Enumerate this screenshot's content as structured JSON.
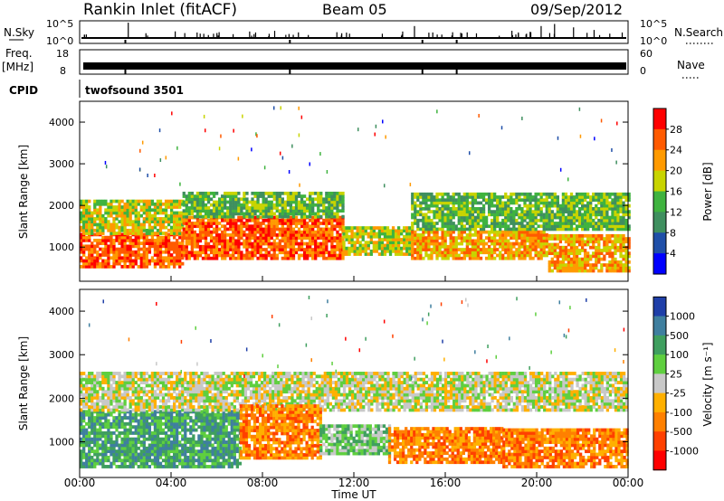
{
  "header": {
    "radar": "Rankin Inlet (fitACF)",
    "beam": "Beam 05",
    "date": "09/Sep/2012"
  },
  "status": {
    "nsky_label": "N.Sky",
    "nsky_ticks": [
      "10^5",
      "10^0"
    ],
    "nsearch_label": "N.Search",
    "nsearch_ticks": [
      "10^5",
      "10^0"
    ],
    "freq_label_1": "Freq.",
    "freq_label_2": "[MHz]",
    "freq_ticks": [
      "18",
      "8"
    ],
    "nave_label": "Nave",
    "nave_ticks": [
      "60",
      "0"
    ],
    "cpid_label": "CPID",
    "cpid_value": "twofsound 3501"
  },
  "chart_data": [
    {
      "type": "heatmap",
      "name": "power",
      "xlabel": "Time UT",
      "ylabel": "Slant Range [km]",
      "x_ticks": [
        "00:00",
        "04:00",
        "08:00",
        "12:00",
        "16:00",
        "20:00",
        "00:00"
      ],
      "y_ticks": [
        "1000",
        "2000",
        "3000",
        "4000"
      ],
      "ylim": [
        180,
        4500
      ],
      "colorbar_label": "Power [dB]",
      "colorbar_ticks": [
        "4",
        "8",
        "12",
        "16",
        "20",
        "24",
        "28"
      ],
      "colors": [
        "#0000ff",
        "#1f4fa8",
        "#3f8f5f",
        "#3fb33f",
        "#c8d400",
        "#ff9a00",
        "#ff5a00",
        "#ff0000"
      ],
      "bands": [
        {
          "t0": 0.0,
          "t1": 4.5,
          "r0": 500,
          "r1": 1300,
          "level": 6
        },
        {
          "t0": 0.0,
          "t1": 4.5,
          "r0": 1300,
          "r1": 2100,
          "level": 4
        },
        {
          "t0": 4.5,
          "t1": 11.5,
          "r0": 700,
          "r1": 1700,
          "level": 6
        },
        {
          "t0": 4.5,
          "t1": 11.5,
          "r0": 1700,
          "r1": 2300,
          "level": 3
        },
        {
          "t0": 11.5,
          "t1": 14.5,
          "r0": 800,
          "r1": 1500,
          "level": 4
        },
        {
          "t0": 14.5,
          "t1": 20.5,
          "r0": 700,
          "r1": 1400,
          "level": 5
        },
        {
          "t0": 14.5,
          "t1": 24.0,
          "r0": 1400,
          "r1": 2300,
          "level": 3
        },
        {
          "t0": 20.5,
          "t1": 24.0,
          "r0": 400,
          "r1": 1300,
          "level": 5
        }
      ]
    },
    {
      "type": "heatmap",
      "name": "velocity",
      "xlabel": "Time UT",
      "ylabel": "Slant Range [km]",
      "x_ticks": [
        "00:00",
        "04:00",
        "08:00",
        "12:00",
        "16:00",
        "20:00",
        "00:00"
      ],
      "y_ticks": [
        "1000",
        "2000",
        "3000",
        "4000"
      ],
      "ylim": [
        180,
        4500
      ],
      "colorbar_label": "Velocity [m s⁻¹]",
      "colorbar_ticks": [
        "1000",
        "500",
        "100",
        "25",
        "-25",
        "-100",
        "-500",
        "-1000"
      ],
      "colors": [
        "#1f3fa8",
        "#3f7f9f",
        "#3f9f5f",
        "#5fcf3f",
        "#c8c8c8",
        "#ffb000",
        "#ff8000",
        "#ff4000",
        "#ff0000"
      ],
      "bands": [
        {
          "t0": 0.0,
          "t1": 7.0,
          "r0": 400,
          "r1": 1700,
          "level": 2
        },
        {
          "t0": 0.0,
          "t1": 24.0,
          "r0": 1700,
          "r1": 2600,
          "level": 4
        },
        {
          "t0": 7.0,
          "t1": 10.5,
          "r0": 600,
          "r1": 1800,
          "level": 6
        },
        {
          "t0": 10.5,
          "t1": 13.5,
          "r0": 700,
          "r1": 1400,
          "level": 3
        },
        {
          "t0": 13.5,
          "t1": 18.5,
          "r0": 500,
          "r1": 1300,
          "level": 6
        },
        {
          "t0": 18.5,
          "t1": 24.0,
          "r0": 400,
          "r1": 1300,
          "level": 6
        }
      ]
    }
  ]
}
